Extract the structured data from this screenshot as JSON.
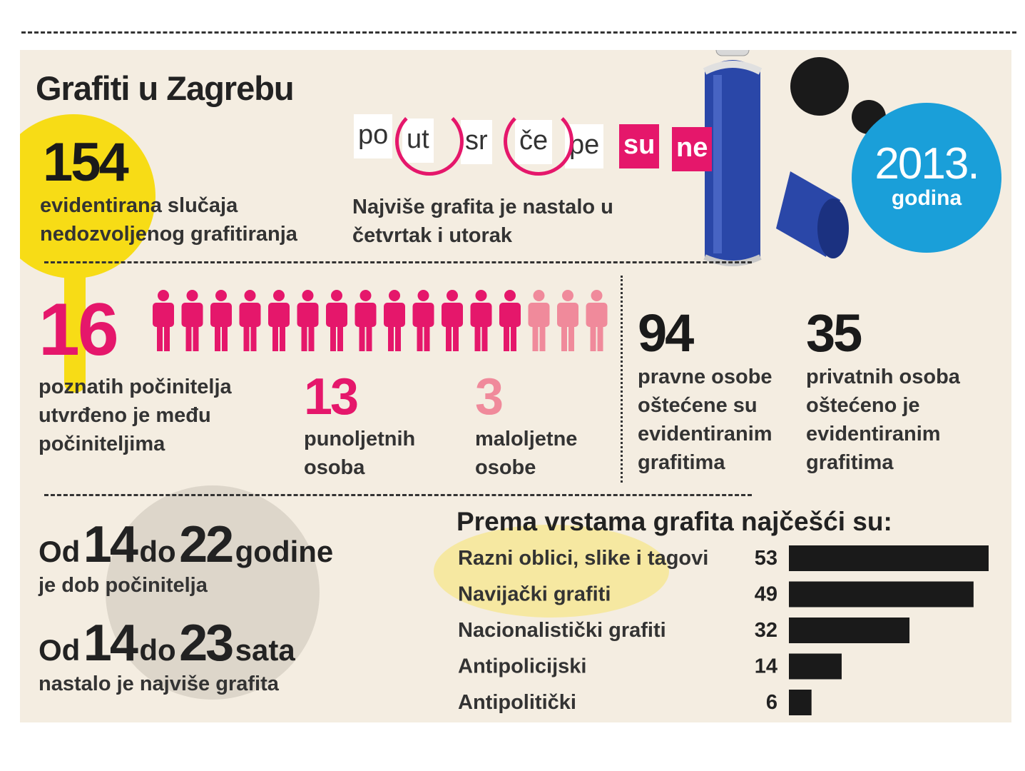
{
  "title": "Grafiti u Zagrebu",
  "badge": {
    "year": "2013.",
    "sub": "godina"
  },
  "stats": {
    "cases": {
      "value": "154",
      "text1": "evidentirana slučaja",
      "text2": "nedozvoljenog grafitiranja"
    },
    "days": {
      "words": [
        "po",
        "ut",
        "sr",
        "če",
        "pe",
        "su",
        "ne"
      ],
      "text1": "Najviše grafita je nastalo u",
      "text2": "četvrtak i utorak"
    },
    "perpetrators": {
      "value": "16",
      "text1": "poznatih počinitelja",
      "text2": "utvrđeno je među",
      "text3": "počiniteljima"
    },
    "adults": {
      "value": "13",
      "text1": "punoljetnih",
      "text2": "osoba"
    },
    "minors": {
      "value": "3",
      "text1": "maloljetne",
      "text2": "osobe"
    },
    "legal": {
      "value": "94",
      "text1": "pravne osobe",
      "text2": "oštećene su",
      "text3": "evidentiranim",
      "text4": "grafitima"
    },
    "private": {
      "value": "35",
      "text1": "privatnih osoba",
      "text2": "oštećeno je",
      "text3": "evidentiranim",
      "text4": "grafitima"
    },
    "age": {
      "od": "Od",
      "from": "14",
      "do": "do",
      "to": "22",
      "unit": "godine",
      "text": "je dob počinitelja"
    },
    "hours": {
      "od": "Od",
      "from": "14",
      "do": "do",
      "to": "23",
      "unit": "sata",
      "text": "nastalo je najviše grafita"
    }
  },
  "colors": {
    "pink": "#e5176b",
    "light_pink": "#f08a9b",
    "blue": "#1a9fd9",
    "yellow": "#f7dc16",
    "background": "#f4ede1"
  },
  "chart_data": {
    "type": "bar",
    "title": "Prema vrstama grafita najčešći su:",
    "categories": [
      "Razni oblici, slike i tagovi",
      "Navijački grafiti",
      "Nacionalistički grafiti",
      "Antipolicijski",
      "Antipolitički"
    ],
    "values": [
      53,
      49,
      32,
      14,
      6
    ],
    "xlim": [
      0,
      53
    ],
    "bar_color": "#1a1a1a"
  }
}
